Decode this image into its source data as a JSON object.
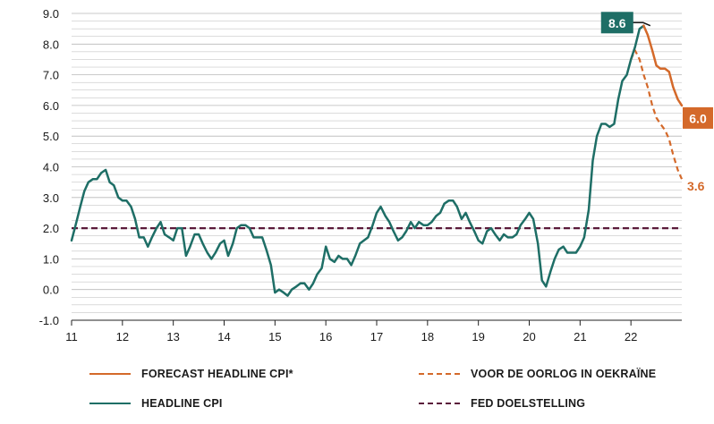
{
  "colors": {
    "forecast": "#d4692a",
    "headline": "#1e6e66",
    "fed": "#5a1a3a",
    "grid": "#b8b8b8",
    "axis": "#222222"
  },
  "legend": [
    {
      "label": "FORECAST HEADLINE CPI*",
      "color": "#d4692a",
      "style": "solid"
    },
    {
      "label": "VOOR DE OORLOG IN OEKRAÏNE",
      "color": "#d4692a",
      "style": "dashed"
    },
    {
      "label": "HEADLINE CPI",
      "color": "#1e6e66",
      "style": "solid"
    },
    {
      "label": "FED DOELSTELLING",
      "color": "#5a1a3a",
      "style": "dashed"
    }
  ],
  "chart_data": {
    "type": "line",
    "title": "",
    "xlabel": "",
    "ylabel": "",
    "ylim": [
      -1.0,
      9.0
    ],
    "xlim": [
      2011.0,
      2023.0
    ],
    "y_ticks": [
      "-1.0",
      "0.0",
      "1.0",
      "2.0",
      "3.0",
      "4.0",
      "5.0",
      "6.0",
      "7.0",
      "8.0",
      "9.0"
    ],
    "x_ticks": [
      "11",
      "12",
      "13",
      "14",
      "15",
      "16",
      "17",
      "18",
      "19",
      "20",
      "21",
      "22"
    ],
    "grid": true,
    "legend_position": "bottom",
    "annotations": [
      {
        "text": "8.6",
        "series": "HEADLINE CPI",
        "x": 2022.38,
        "y": 8.6,
        "style": "box-teal"
      },
      {
        "text": "6.0",
        "series": "FORECAST HEADLINE CPI*",
        "x": 2023.0,
        "y": 6.0,
        "style": "box-orange"
      },
      {
        "text": "3.6",
        "series": "VOOR DE OORLOG IN OEKRAÏNE",
        "x": 2023.0,
        "y": 3.6,
        "style": "text-orange"
      }
    ],
    "series": [
      {
        "name": "HEADLINE CPI",
        "color": "#1e6e66",
        "style": "solid",
        "x": [
          2011.0,
          2011.08,
          2011.17,
          2011.25,
          2011.33,
          2011.42,
          2011.5,
          2011.58,
          2011.67,
          2011.75,
          2011.83,
          2011.92,
          2012.0,
          2012.08,
          2012.17,
          2012.25,
          2012.33,
          2012.42,
          2012.5,
          2012.58,
          2012.67,
          2012.75,
          2012.83,
          2012.92,
          2013.0,
          2013.08,
          2013.17,
          2013.25,
          2013.33,
          2013.42,
          2013.5,
          2013.58,
          2013.67,
          2013.75,
          2013.83,
          2013.92,
          2014.0,
          2014.08,
          2014.17,
          2014.25,
          2014.33,
          2014.42,
          2014.5,
          2014.58,
          2014.67,
          2014.75,
          2014.83,
          2014.92,
          2015.0,
          2015.08,
          2015.17,
          2015.25,
          2015.33,
          2015.42,
          2015.5,
          2015.58,
          2015.67,
          2015.75,
          2015.83,
          2015.92,
          2016.0,
          2016.08,
          2016.17,
          2016.25,
          2016.33,
          2016.42,
          2016.5,
          2016.58,
          2016.67,
          2016.75,
          2016.83,
          2016.92,
          2017.0,
          2017.08,
          2017.17,
          2017.25,
          2017.33,
          2017.42,
          2017.5,
          2017.58,
          2017.67,
          2017.75,
          2017.83,
          2017.92,
          2018.0,
          2018.08,
          2018.17,
          2018.25,
          2018.33,
          2018.42,
          2018.5,
          2018.58,
          2018.67,
          2018.75,
          2018.83,
          2018.92,
          2019.0,
          2019.08,
          2019.17,
          2019.25,
          2019.33,
          2019.42,
          2019.5,
          2019.58,
          2019.67,
          2019.75,
          2019.83,
          2019.92,
          2020.0,
          2020.08,
          2020.17,
          2020.25,
          2020.33,
          2020.42,
          2020.5,
          2020.58,
          2020.67,
          2020.75,
          2020.83,
          2020.92,
          2021.0,
          2021.08,
          2021.17,
          2021.25,
          2021.33,
          2021.42,
          2021.5,
          2021.58,
          2021.67,
          2021.75,
          2021.83,
          2021.92,
          2022.0,
          2022.08,
          2022.17,
          2022.25
        ],
        "values": [
          1.6,
          2.1,
          2.7,
          3.2,
          3.5,
          3.6,
          3.6,
          3.8,
          3.9,
          3.5,
          3.4,
          3.0,
          2.9,
          2.9,
          2.7,
          2.3,
          1.7,
          1.7,
          1.4,
          1.7,
          2.0,
          2.2,
          1.8,
          1.7,
          1.6,
          2.0,
          2.0,
          1.1,
          1.4,
          1.8,
          1.8,
          1.5,
          1.2,
          1.0,
          1.2,
          1.5,
          1.6,
          1.1,
          1.5,
          2.0,
          2.1,
          2.1,
          2.0,
          1.7,
          1.7,
          1.7,
          1.3,
          0.8,
          -0.1,
          0.0,
          -0.1,
          -0.2,
          0.0,
          0.1,
          0.2,
          0.2,
          0.0,
          0.2,
          0.5,
          0.7,
          1.4,
          1.0,
          0.9,
          1.1,
          1.0,
          1.0,
          0.8,
          1.1,
          1.5,
          1.6,
          1.7,
          2.1,
          2.5,
          2.7,
          2.4,
          2.2,
          1.9,
          1.6,
          1.7,
          1.9,
          2.2,
          2.0,
          2.2,
          2.1,
          2.1,
          2.2,
          2.4,
          2.5,
          2.8,
          2.9,
          2.9,
          2.7,
          2.3,
          2.5,
          2.2,
          1.9,
          1.6,
          1.5,
          1.9,
          2.0,
          1.8,
          1.6,
          1.8,
          1.7,
          1.7,
          1.8,
          2.1,
          2.3,
          2.5,
          2.3,
          1.5,
          0.3,
          0.1,
          0.6,
          1.0,
          1.3,
          1.4,
          1.2,
          1.2,
          1.2,
          1.4,
          1.7,
          2.6,
          4.2,
          5.0,
          5.4,
          5.4,
          5.3,
          5.4,
          6.2,
          6.8,
          7.0,
          7.5,
          7.9,
          8.5,
          8.6
        ]
      },
      {
        "name": "FORECAST HEADLINE CPI*",
        "color": "#d4692a",
        "style": "solid",
        "x": [
          2022.25,
          2022.33,
          2022.42,
          2022.5,
          2022.58,
          2022.67,
          2022.75,
          2022.83,
          2022.92,
          2023.0
        ],
        "values": [
          8.6,
          8.3,
          7.8,
          7.3,
          7.2,
          7.2,
          7.1,
          6.6,
          6.2,
          6.0
        ]
      },
      {
        "name": "VOOR DE OORLOG IN OEKRAÏNE",
        "color": "#d4692a",
        "style": "dashed",
        "x": [
          2022.0,
          2022.08,
          2022.17,
          2022.25,
          2022.33,
          2022.42,
          2022.5,
          2022.58,
          2022.67,
          2022.75,
          2022.83,
          2022.92,
          2023.0
        ],
        "values": [
          7.5,
          7.8,
          7.5,
          7.0,
          6.6,
          6.0,
          5.6,
          5.4,
          5.2,
          4.9,
          4.4,
          3.9,
          3.6
        ]
      },
      {
        "name": "FED DOELSTELLING",
        "color": "#5a1a3a",
        "style": "dashed",
        "x": [
          2011.0,
          2023.0
        ],
        "values": [
          2.0,
          2.0
        ]
      }
    ]
  }
}
